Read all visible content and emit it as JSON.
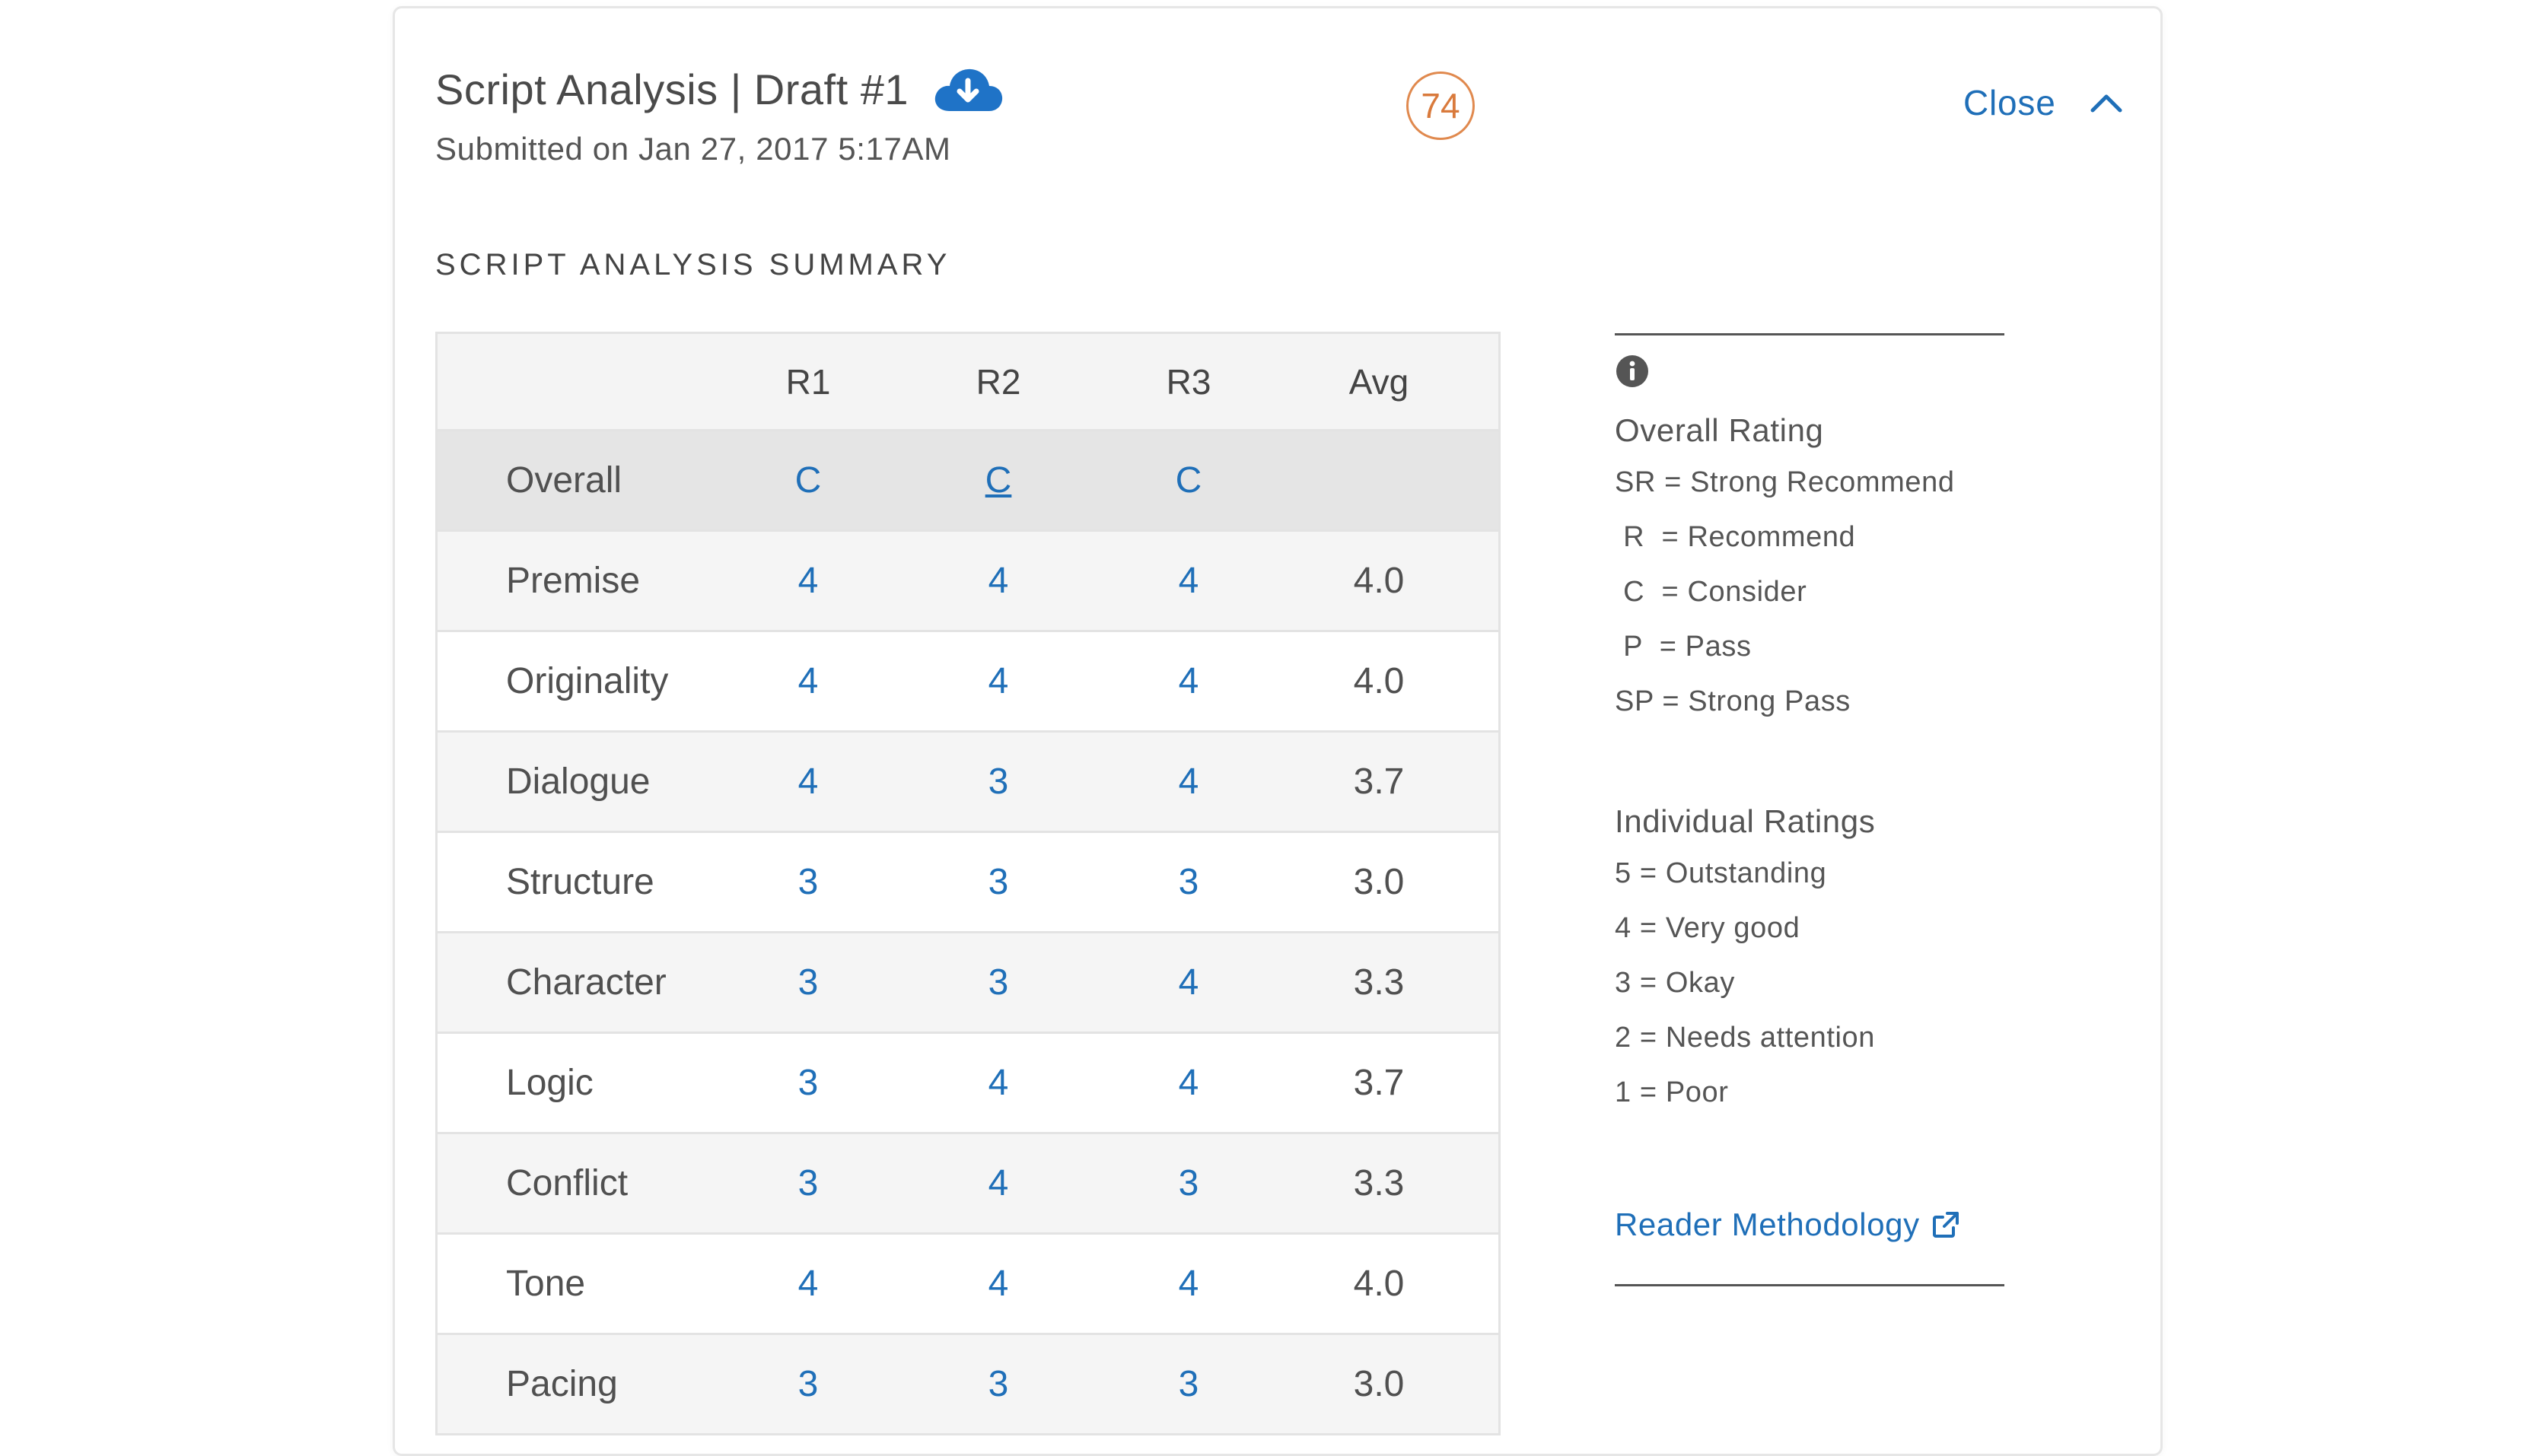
{
  "header": {
    "title": "Script Analysis | Draft #1",
    "submitted": "Submitted on Jan 27, 2017 5:17AM",
    "score": "74",
    "close_label": "Close"
  },
  "summary": {
    "section_title": "SCRIPT ANALYSIS SUMMARY",
    "columns": [
      "R1",
      "R2",
      "R3",
      "Avg"
    ],
    "overall": {
      "label": "Overall",
      "r1": "C",
      "r2": "C",
      "r3": "C",
      "avg": ""
    },
    "rows": [
      {
        "label": "Premise",
        "r1": "4",
        "r2": "4",
        "r3": "4",
        "avg": "4.0"
      },
      {
        "label": "Originality",
        "r1": "4",
        "r2": "4",
        "r3": "4",
        "avg": "4.0"
      },
      {
        "label": "Dialogue",
        "r1": "4",
        "r2": "3",
        "r3": "4",
        "avg": "3.7"
      },
      {
        "label": "Structure",
        "r1": "3",
        "r2": "3",
        "r3": "3",
        "avg": "3.0"
      },
      {
        "label": "Character",
        "r1": "3",
        "r2": "3",
        "r3": "4",
        "avg": "3.3"
      },
      {
        "label": "Logic",
        "r1": "3",
        "r2": "4",
        "r3": "4",
        "avg": "3.7"
      },
      {
        "label": "Conflict",
        "r1": "3",
        "r2": "4",
        "r3": "3",
        "avg": "3.3"
      },
      {
        "label": "Tone",
        "r1": "4",
        "r2": "4",
        "r3": "4",
        "avg": "4.0"
      },
      {
        "label": "Pacing",
        "r1": "3",
        "r2": "3",
        "r3": "3",
        "avg": "3.0"
      }
    ]
  },
  "legend": {
    "overall_title": "Overall Rating",
    "overall_items": [
      "SR = Strong Recommend",
      " R  = Recommend",
      " C  = Consider",
      " P  = Pass",
      "SP = Strong Pass"
    ],
    "individual_title": "Individual Ratings",
    "individual_items": [
      "5 = Outstanding",
      "4 = Very good",
      "3 = Okay",
      "2 = Needs attention",
      "1 = Poor"
    ],
    "methodology_link": "Reader Methodology"
  },
  "colors": {
    "link": "#1f6fb8",
    "score_ring": "#e0894e"
  }
}
